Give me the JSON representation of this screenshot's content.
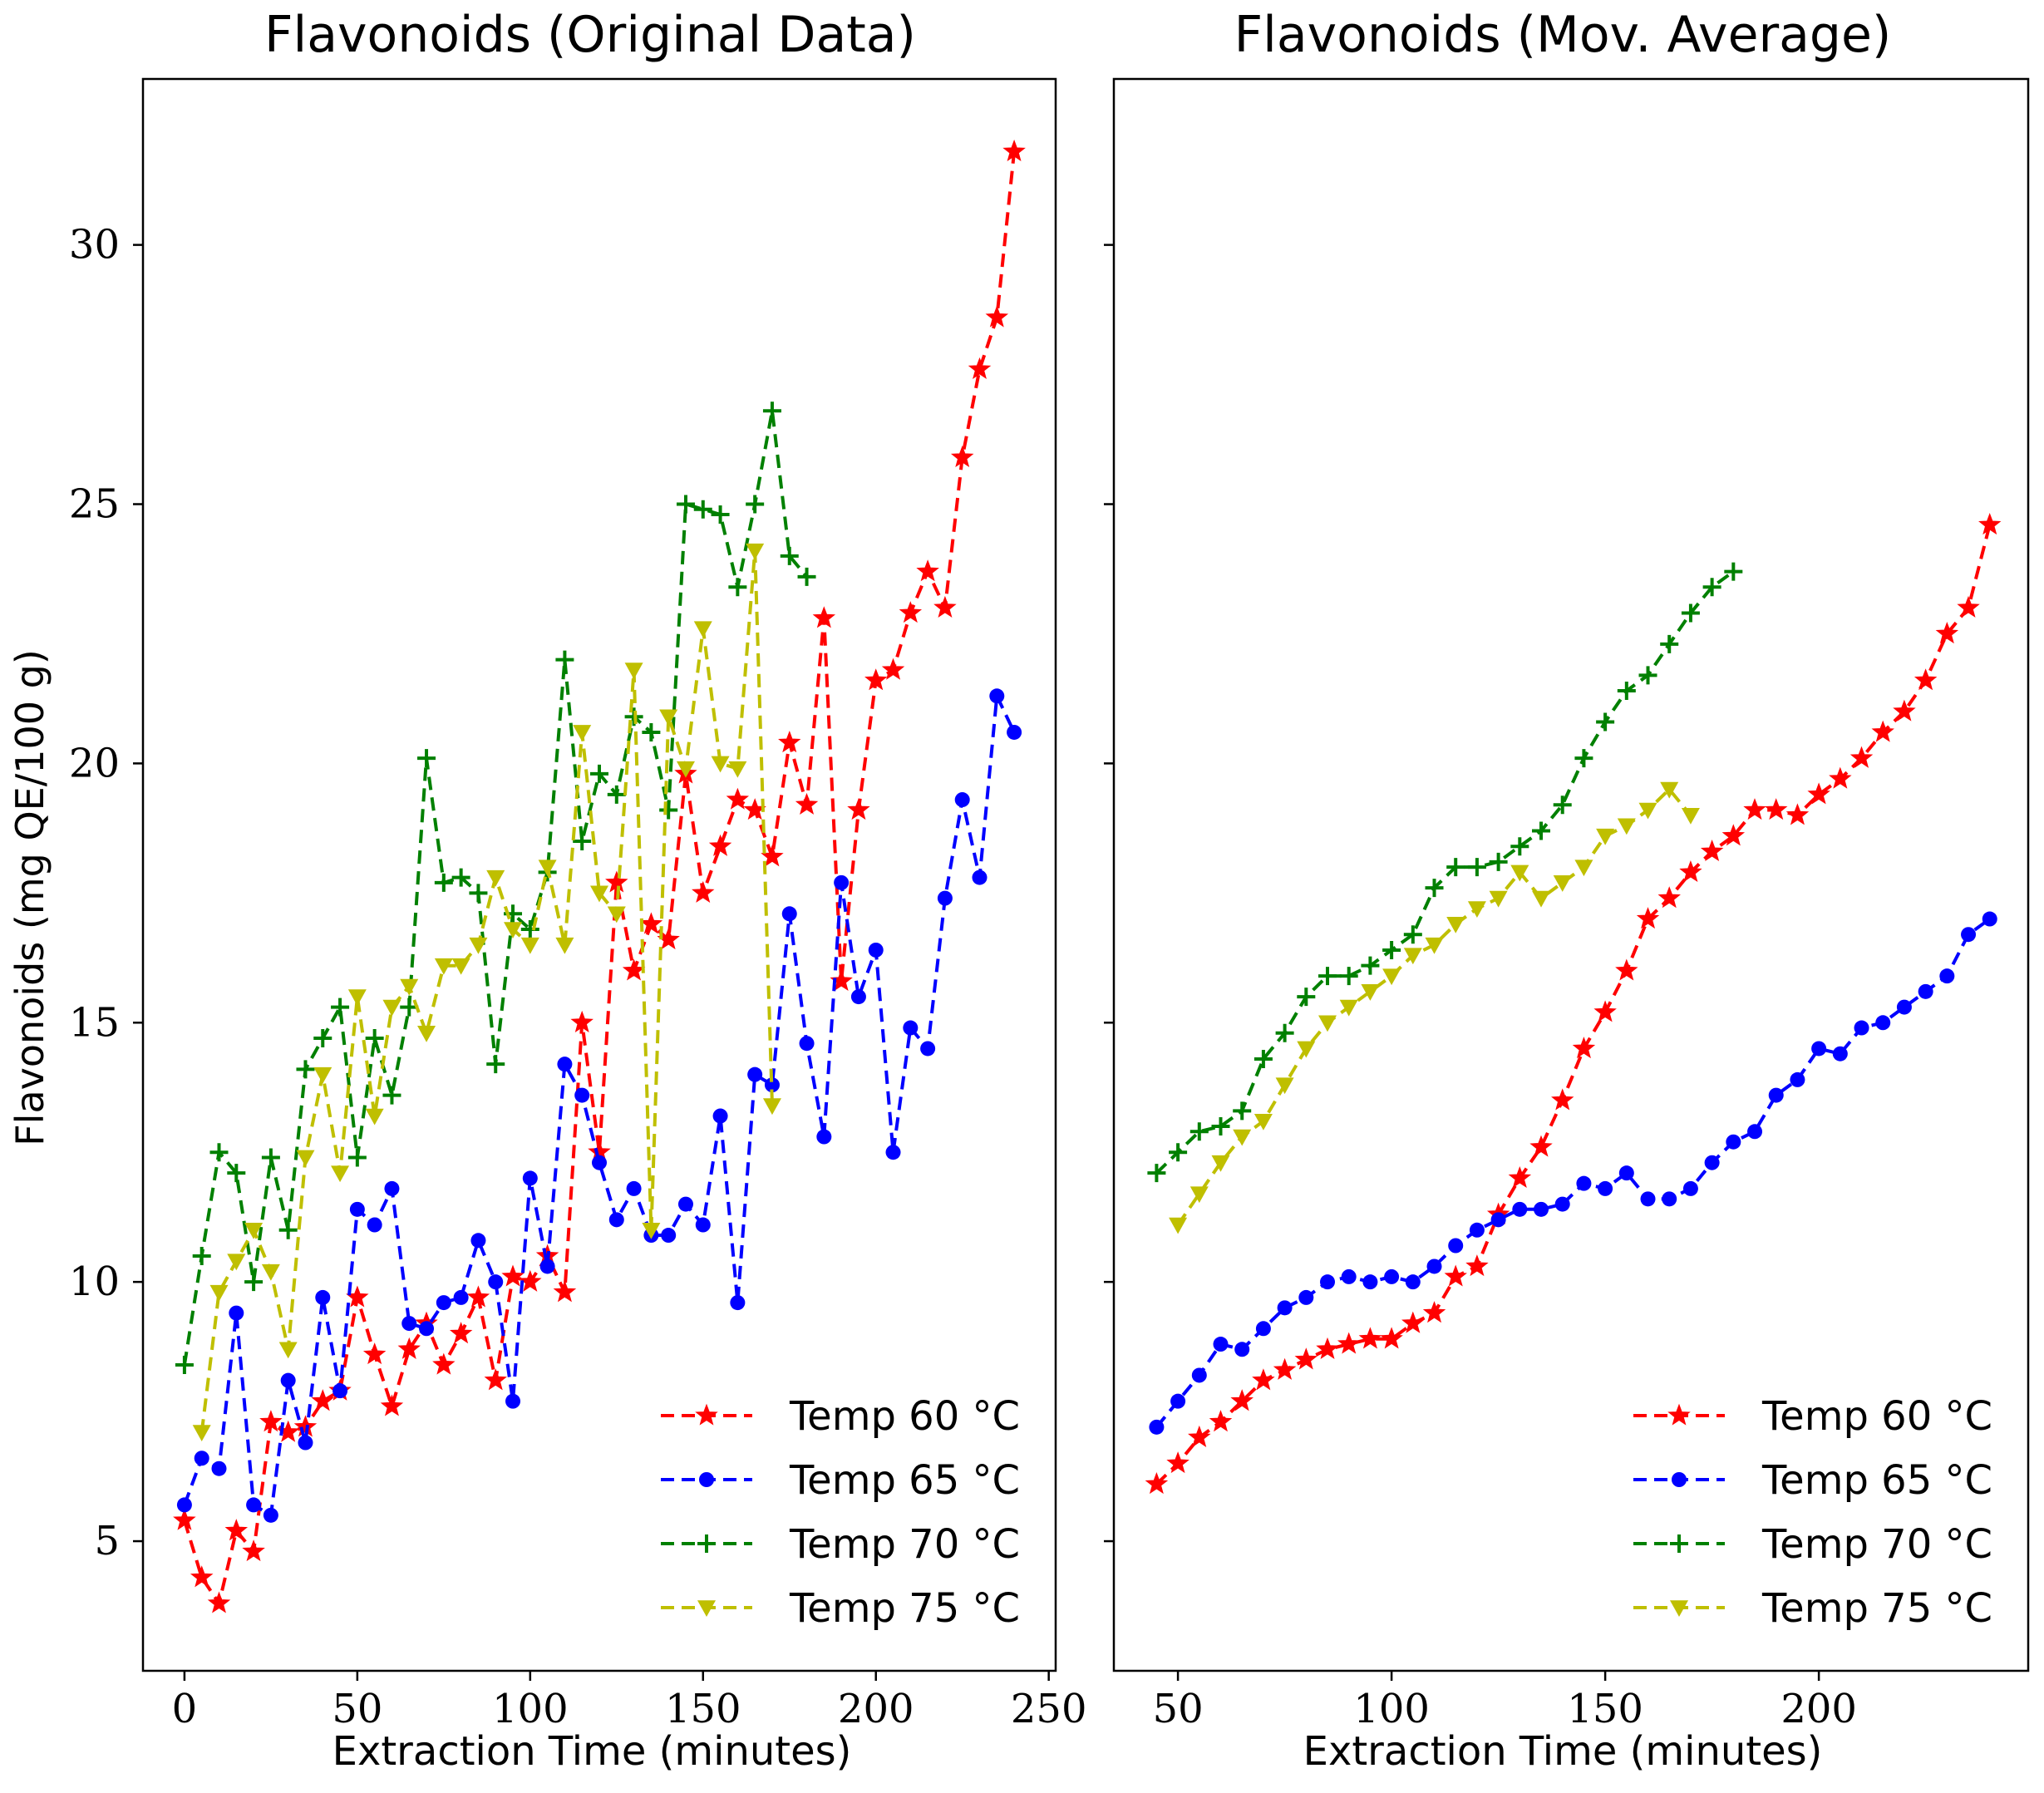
{
  "chart_data": [
    {
      "type": "line",
      "title": "Flavonoids (Original Data)",
      "xlabel": "Extraction Time (minutes)",
      "ylabel": "Flavonoids (mg QE/100 g)",
      "xlim": [
        -12,
        252
      ],
      "ylim": [
        2.5,
        33.2
      ],
      "xticks": [
        0,
        50,
        100,
        150,
        200,
        250
      ],
      "yticks": [
        5,
        10,
        15,
        20,
        25,
        30
      ],
      "legend_position": "lower-right",
      "series": [
        {
          "name": "Temp 60 °C",
          "color": "#ff0000",
          "marker": "star",
          "x": [
            0,
            5,
            10,
            15,
            20,
            25,
            30,
            35,
            40,
            45,
            50,
            55,
            60,
            65,
            70,
            75,
            80,
            85,
            90,
            95,
            100,
            105,
            110,
            115,
            120,
            125,
            130,
            135,
            140,
            145,
            150,
            155,
            160,
            165,
            170,
            175,
            180,
            185,
            190,
            195,
            200,
            205,
            210,
            215,
            220,
            225,
            230,
            235,
            240
          ],
          "y": [
            5.4,
            4.3,
            3.8,
            5.2,
            4.8,
            7.3,
            7.1,
            7.2,
            7.7,
            7.9,
            9.7,
            8.6,
            7.6,
            8.7,
            9.2,
            8.4,
            9.0,
            9.7,
            8.1,
            10.1,
            10.0,
            10.5,
            9.8,
            15.0,
            12.5,
            17.7,
            16.0,
            16.9,
            16.6,
            19.8,
            17.5,
            18.4,
            19.3,
            19.1,
            18.2,
            20.4,
            19.2,
            22.8,
            15.8,
            19.1,
            21.6,
            21.8,
            22.9,
            23.7,
            23.0,
            25.9,
            27.6,
            28.6,
            31.8
          ]
        },
        {
          "name": "Temp 65 °C",
          "color": "#0000ff",
          "marker": "circle",
          "x": [
            0,
            5,
            10,
            15,
            20,
            25,
            30,
            35,
            40,
            45,
            50,
            55,
            60,
            65,
            70,
            75,
            80,
            85,
            90,
            95,
            100,
            105,
            110,
            115,
            120,
            125,
            130,
            135,
            140,
            145,
            150,
            155,
            160,
            165,
            170,
            175,
            180,
            185,
            190,
            195,
            200,
            205,
            210,
            215,
            220,
            225,
            230,
            235,
            240
          ],
          "y": [
            5.7,
            6.6,
            6.4,
            9.4,
            5.7,
            5.5,
            8.1,
            6.9,
            9.7,
            7.9,
            11.4,
            11.1,
            11.8,
            9.2,
            9.1,
            9.6,
            9.7,
            10.8,
            10.0,
            7.7,
            12.0,
            10.3,
            14.2,
            13.6,
            12.3,
            11.2,
            11.8,
            10.9,
            10.9,
            11.5,
            11.1,
            13.2,
            9.6,
            14.0,
            13.8,
            17.1,
            14.6,
            12.8,
            17.7,
            15.5,
            16.4,
            12.5,
            14.9,
            14.5,
            17.4,
            19.3,
            17.8,
            21.3,
            20.6
          ]
        },
        {
          "name": "Temp 70 °C",
          "color": "#008000",
          "marker": "plus",
          "x": [
            0,
            5,
            10,
            15,
            20,
            25,
            30,
            35,
            40,
            45,
            50,
            55,
            60,
            65,
            70,
            75,
            80,
            85,
            90,
            95,
            100,
            105,
            110,
            115,
            120,
            125,
            130,
            135,
            140,
            145,
            150,
            155,
            160,
            165,
            170,
            175,
            180
          ],
          "y": [
            8.4,
            10.5,
            12.5,
            12.1,
            10.0,
            12.4,
            11.0,
            14.1,
            14.7,
            15.3,
            12.4,
            14.7,
            13.6,
            15.3,
            20.1,
            17.7,
            17.8,
            17.5,
            14.2,
            17.1,
            16.8,
            17.9,
            22.0,
            18.5,
            19.8,
            19.4,
            20.9,
            20.6,
            19.1,
            25.0,
            24.9,
            24.8,
            23.4,
            25.0,
            26.8,
            24.0,
            23.6
          ]
        },
        {
          "name": "Temp 75 °C",
          "color": "#bfbf00",
          "marker": "triangle-down",
          "x": [
            5,
            10,
            15,
            20,
            25,
            30,
            35,
            40,
            45,
            50,
            55,
            60,
            65,
            70,
            75,
            80,
            85,
            90,
            95,
            100,
            105,
            110,
            115,
            120,
            125,
            130,
            135,
            140,
            145,
            150,
            155,
            160,
            165,
            170
          ],
          "y": [
            7.1,
            9.8,
            10.4,
            11.0,
            10.2,
            8.7,
            12.4,
            14.0,
            12.1,
            15.5,
            13.2,
            15.3,
            15.7,
            14.8,
            16.1,
            16.1,
            16.5,
            17.8,
            16.8,
            16.5,
            18.0,
            16.5,
            20.6,
            17.5,
            17.1,
            21.8,
            11.0,
            20.9,
            19.9,
            22.6,
            20.0,
            19.9,
            24.1,
            13.4
          ]
        }
      ]
    },
    {
      "type": "line",
      "title": "Flavonoids (Mov. Average)",
      "xlabel": "Extraction Time (minutes)",
      "ylabel": "",
      "xlim": [
        35,
        249
      ],
      "ylim": [
        2.5,
        33.2
      ],
      "xticks": [
        50,
        100,
        150,
        200
      ],
      "yticks": [
        5,
        10,
        15,
        20,
        25,
        30
      ],
      "legend_position": "lower-right",
      "series": [
        {
          "name": "Temp 60 °C",
          "color": "#ff0000",
          "marker": "star",
          "x": [
            45,
            50,
            55,
            60,
            65,
            70,
            75,
            80,
            85,
            90,
            95,
            100,
            105,
            110,
            115,
            120,
            125,
            130,
            135,
            140,
            145,
            150,
            155,
            160,
            165,
            170,
            175,
            180,
            185,
            190,
            195,
            200,
            205,
            210,
            215,
            220,
            225,
            230,
            235,
            240
          ],
          "y": [
            6.1,
            6.5,
            7.0,
            7.3,
            7.7,
            8.1,
            8.3,
            8.5,
            8.7,
            8.8,
            8.9,
            8.9,
            9.2,
            9.4,
            10.1,
            10.3,
            11.3,
            12.0,
            12.6,
            13.5,
            14.5,
            15.2,
            16.0,
            17.0,
            17.4,
            17.9,
            18.3,
            18.6,
            19.1,
            19.1,
            19.0,
            19.4,
            19.7,
            20.1,
            20.6,
            21.0,
            21.6,
            22.5,
            23.0,
            24.6
          ]
        },
        {
          "name": "Temp 65 °C",
          "color": "#0000ff",
          "marker": "circle",
          "x": [
            45,
            50,
            55,
            60,
            65,
            70,
            75,
            80,
            85,
            90,
            95,
            100,
            105,
            110,
            115,
            120,
            125,
            130,
            135,
            140,
            145,
            150,
            155,
            160,
            165,
            170,
            175,
            180,
            185,
            190,
            195,
            200,
            205,
            210,
            215,
            220,
            225,
            230,
            235,
            240
          ],
          "y": [
            7.2,
            7.7,
            8.2,
            8.8,
            8.7,
            9.1,
            9.5,
            9.7,
            10.0,
            10.1,
            10.0,
            10.1,
            10.0,
            10.3,
            10.7,
            11.0,
            11.2,
            11.4,
            11.4,
            11.5,
            11.9,
            11.8,
            12.1,
            11.6,
            11.6,
            11.8,
            12.3,
            12.7,
            12.9,
            13.6,
            13.9,
            14.5,
            14.4,
            14.9,
            15.0,
            15.3,
            15.6,
            15.9,
            16.7,
            17.0
          ]
        },
        {
          "name": "Temp 70 °C",
          "color": "#008000",
          "marker": "plus",
          "x": [
            45,
            50,
            55,
            60,
            65,
            70,
            75,
            80,
            85,
            90,
            95,
            100,
            105,
            110,
            115,
            120,
            125,
            130,
            135,
            140,
            145,
            150,
            155,
            160,
            165,
            170,
            175,
            180
          ],
          "y": [
            12.1,
            12.5,
            12.9,
            13.0,
            13.3,
            14.3,
            14.8,
            15.5,
            15.9,
            15.9,
            16.1,
            16.4,
            16.7,
            17.6,
            18.0,
            18.0,
            18.1,
            18.4,
            18.7,
            19.2,
            20.1,
            20.8,
            21.4,
            21.7,
            22.3,
            22.9,
            23.4,
            23.7
          ]
        },
        {
          "name": "Temp 75 °C",
          "color": "#bfbf00",
          "marker": "triangle-down",
          "x": [
            50,
            55,
            60,
            65,
            70,
            75,
            80,
            85,
            90,
            95,
            100,
            105,
            110,
            115,
            120,
            125,
            130,
            135,
            140,
            145,
            150,
            155,
            160,
            165,
            170
          ],
          "y": [
            11.1,
            11.7,
            12.3,
            12.8,
            13.1,
            13.8,
            14.5,
            15.0,
            15.3,
            15.6,
            15.9,
            16.3,
            16.5,
            16.9,
            17.2,
            17.4,
            17.9,
            17.4,
            17.7,
            18.0,
            18.6,
            18.8,
            19.1,
            19.5,
            19.0
          ]
        }
      ]
    }
  ]
}
